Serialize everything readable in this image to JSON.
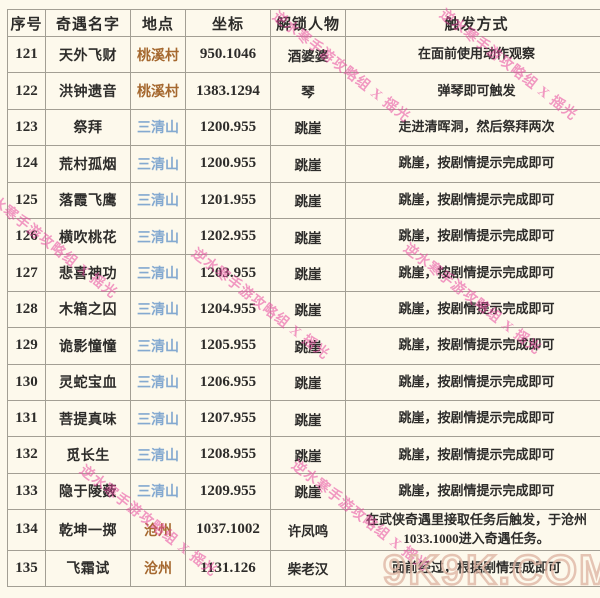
{
  "table": {
    "headers": [
      "序号",
      "奇遇名字",
      "地点",
      "坐标",
      "解锁人物",
      "触发方式"
    ],
    "rows": [
      {
        "no": "121",
        "name": "天外飞财",
        "location": "桃溪村",
        "loc_style": "village",
        "coord": "950.1046",
        "unlock": "酒婆婆",
        "trigger": "在面前使用动作观察"
      },
      {
        "no": "122",
        "name": "洪钟遗音",
        "location": "桃溪村",
        "loc_style": "village",
        "coord": "1383.1294",
        "unlock": "琴",
        "trigger": "弹琴即可触发"
      },
      {
        "no": "123",
        "name": "祭拜",
        "location": "三清山",
        "loc_style": "mountain",
        "coord": "1200.955",
        "unlock": "跳崖",
        "trigger": "走进清晖洞，然后祭拜两次"
      },
      {
        "no": "124",
        "name": "荒村孤烟",
        "location": "三清山",
        "loc_style": "mountain",
        "coord": "1200.955",
        "unlock": "跳崖",
        "trigger": "跳崖，按剧情提示完成即可"
      },
      {
        "no": "125",
        "name": "落霞飞鹰",
        "location": "三清山",
        "loc_style": "mountain",
        "coord": "1201.955",
        "unlock": "跳崖",
        "trigger": "跳崖，按剧情提示完成即可"
      },
      {
        "no": "126",
        "name": "横吹桃花",
        "location": "三清山",
        "loc_style": "mountain",
        "coord": "1202.955",
        "unlock": "跳崖",
        "trigger": "跳崖，按剧情提示完成即可"
      },
      {
        "no": "127",
        "name": "悲喜神功",
        "location": "三清山",
        "loc_style": "mountain",
        "coord": "1203.955",
        "unlock": "跳崖",
        "trigger": "跳崖，按剧情提示完成即可"
      },
      {
        "no": "128",
        "name": "木箱之囚",
        "location": "三清山",
        "loc_style": "mountain",
        "coord": "1204.955",
        "unlock": "跳崖",
        "trigger": "跳崖，按剧情提示完成即可"
      },
      {
        "no": "129",
        "name": "诡影憧憧",
        "location": "三清山",
        "loc_style": "mountain",
        "coord": "1205.955",
        "unlock": "跳崖",
        "trigger": "跳崖，按剧情提示完成即可"
      },
      {
        "no": "130",
        "name": "灵蛇宝血",
        "location": "三清山",
        "loc_style": "mountain",
        "coord": "1206.955",
        "unlock": "跳崖",
        "trigger": "跳崖，按剧情提示完成即可"
      },
      {
        "no": "131",
        "name": "菩提真味",
        "location": "三清山",
        "loc_style": "mountain",
        "coord": "1207.955",
        "unlock": "跳崖",
        "trigger": "跳崖，按剧情提示完成即可"
      },
      {
        "no": "132",
        "name": "觅长生",
        "location": "三清山",
        "loc_style": "mountain",
        "coord": "1208.955",
        "unlock": "跳崖",
        "trigger": "跳崖，按剧情提示完成即可"
      },
      {
        "no": "133",
        "name": "隐于陵薮",
        "location": "三清山",
        "loc_style": "mountain",
        "coord": "1209.955",
        "unlock": "跳崖",
        "trigger": "跳崖，按剧情提示完成即可"
      },
      {
        "no": "134",
        "name": "乾坤一掷",
        "location": "沧州",
        "loc_style": "village",
        "coord": "1037.1002",
        "unlock": "许凤鸣",
        "trigger": "在武侠奇遇里接取任务后触发，于沧州1033.1000进入奇遇任务。"
      },
      {
        "no": "135",
        "name": "飞霜试",
        "location": "沧州",
        "loc_style": "village",
        "coord": "1131.126",
        "unlock": "柴老汉",
        "trigger": "面前经过，根据剧情完成即可"
      }
    ]
  },
  "watermarks": {
    "diagonal_text": "逆水寒手游攻略组 X 摇光",
    "site": "9K9K.COM"
  },
  "colors": {
    "background": "#fdf9ec",
    "border": "#a39f94",
    "text": "#2d2c2a",
    "village_location": "#a5682f",
    "mountain_location": "#84a9d0",
    "diagonal_watermark": "#e7499e",
    "site_watermark": "#deb6a5"
  }
}
